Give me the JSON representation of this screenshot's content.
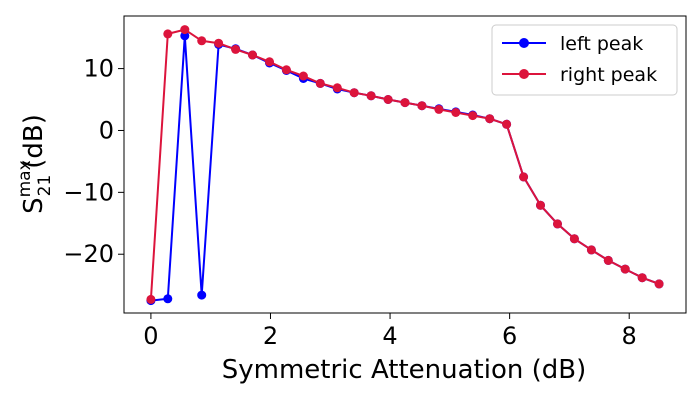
{
  "chart_data": {
    "type": "line",
    "xlabel": "Symmetric Attenuation (dB)",
    "ylabel": {
      "base": "S",
      "sub": "21",
      "sup": "max",
      "unit": "(dB)"
    },
    "xlim": [
      -0.45,
      8.95
    ],
    "ylim": [
      -29.5,
      18.5
    ],
    "xticks": [
      0,
      2,
      4,
      6,
      8
    ],
    "yticks": [
      10,
      0,
      -10,
      -20
    ],
    "grid": false,
    "legend_position": "top-right",
    "series": [
      {
        "name": "left peak",
        "color": "#0000ff",
        "x": [
          0.0,
          0.283,
          0.567,
          0.85,
          1.133,
          1.417,
          1.7,
          1.983,
          2.267,
          2.55,
          2.833,
          3.117,
          3.4,
          3.683,
          3.967,
          4.25,
          4.533,
          4.817,
          5.1,
          5.383,
          5.667,
          5.95,
          6.233,
          6.517,
          6.8,
          7.083,
          7.367,
          7.65,
          7.933,
          8.217,
          8.5
        ],
        "y": [
          -27.5,
          -27.2,
          15.3,
          -26.6,
          13.9,
          13.2,
          12.2,
          10.9,
          9.7,
          8.4,
          7.6,
          6.7,
          6.1,
          5.6,
          5.0,
          4.5,
          4.0,
          3.5,
          3.0,
          2.5,
          1.9,
          1.0,
          -7.5,
          -12.1,
          -15.1,
          -17.5,
          -19.3,
          -21.0,
          -22.4,
          -23.8,
          -24.8
        ]
      },
      {
        "name": "right peak",
        "color": "#dc143c",
        "x": [
          0.0,
          0.283,
          0.567,
          0.85,
          1.133,
          1.417,
          1.7,
          1.983,
          2.267,
          2.55,
          2.833,
          3.117,
          3.4,
          3.683,
          3.967,
          4.25,
          4.533,
          4.817,
          5.1,
          5.383,
          5.667,
          5.95,
          6.233,
          6.517,
          6.8,
          7.083,
          7.367,
          7.65,
          7.933,
          8.217,
          8.5
        ],
        "y": [
          -27.3,
          15.6,
          16.3,
          14.5,
          14.1,
          13.1,
          12.2,
          11.1,
          9.8,
          8.8,
          7.6,
          6.9,
          6.1,
          5.6,
          5.0,
          4.5,
          4.0,
          3.4,
          2.9,
          2.4,
          1.9,
          1.0,
          -7.5,
          -12.1,
          -15.1,
          -17.5,
          -19.3,
          -21.0,
          -22.4,
          -23.8,
          -24.8
        ]
      }
    ]
  }
}
